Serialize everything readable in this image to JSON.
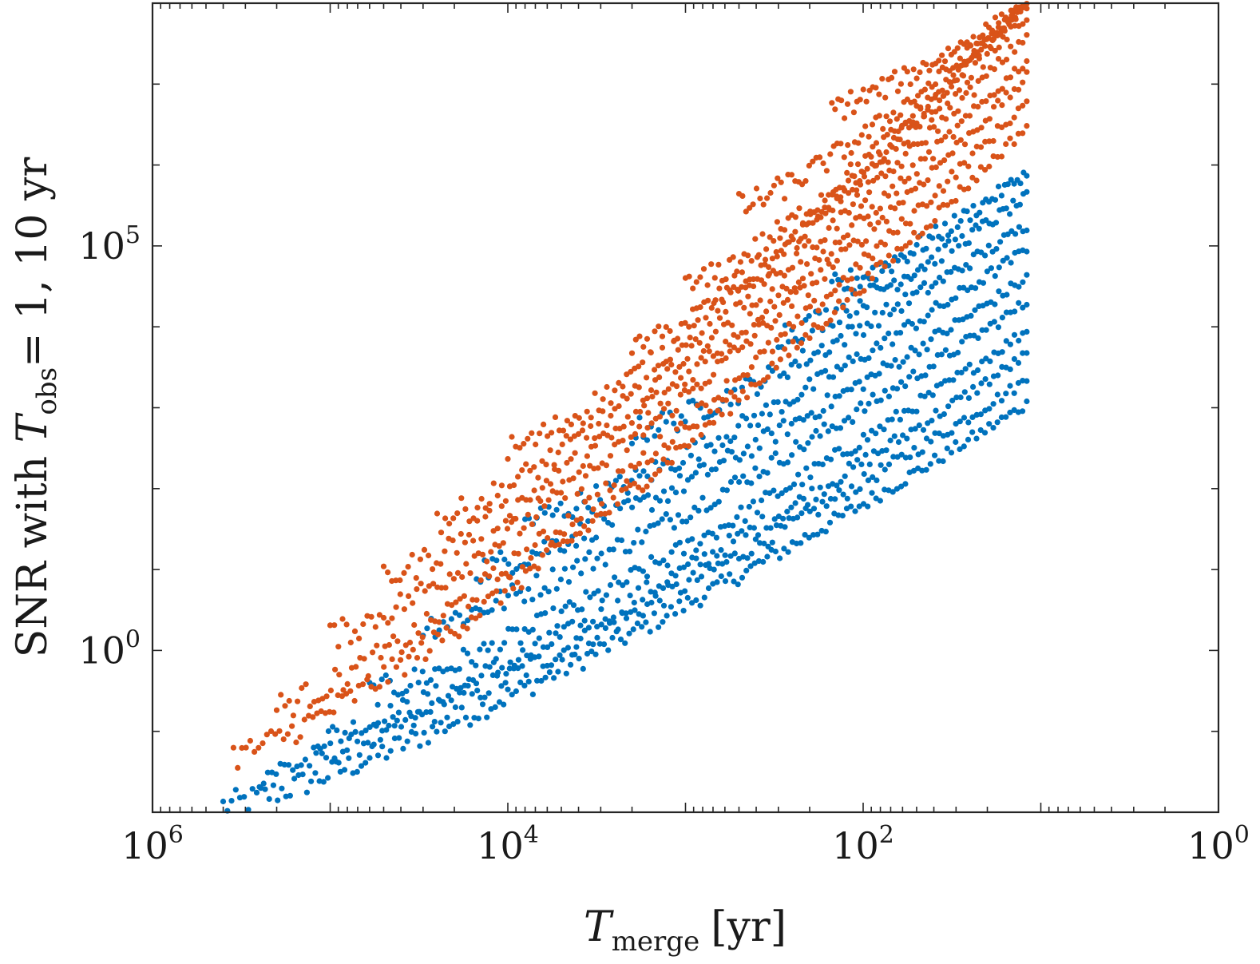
{
  "chart_data": {
    "type": "scatter",
    "x_axis": {
      "scale": "log",
      "reversed": true,
      "range": [
        1000000,
        1
      ],
      "tick_values": [
        1000000,
        10000,
        100,
        1
      ],
      "tick_bases": [
        "10",
        "10",
        "10",
        "10"
      ],
      "tick_exponents": [
        "6",
        "4",
        "2",
        "0"
      ],
      "label_main": "T",
      "label_sub": "merge",
      "label_unit": "[yr]"
    },
    "y_axis": {
      "scale": "log",
      "range": [
        0.01,
        100000000
      ],
      "tick_values": [
        1,
        100000
      ],
      "tick_bases": [
        "10",
        "10"
      ],
      "tick_exponents": [
        "0",
        "5"
      ],
      "label_prefix": "SNR with ",
      "label_main": "T",
      "label_sub": "obs",
      "label_suffix": "= 1, 10 yr"
    },
    "grid": false,
    "legend": "none",
    "colors": {
      "series_1": "#0072BD",
      "series_2": "#D95319"
    },
    "series": [
      {
        "color": "#0072BD",
        "tracks": [
          {
            "t_start": 400000,
            "t_end": 12,
            "snr_start": 0.012,
            "snr_end": 1100
          },
          {
            "t_start": 250000,
            "t_end": 12,
            "snr_start": 0.03,
            "snr_end": 2200
          },
          {
            "t_start": 120000,
            "t_end": 12,
            "snr_start": 0.08,
            "snr_end": 4500
          },
          {
            "t_start": 60000,
            "t_end": 12,
            "snr_start": 0.3,
            "snr_end": 9000
          },
          {
            "t_start": 30000,
            "t_end": 12,
            "snr_start": 2,
            "snr_end": 20000
          },
          {
            "t_start": 15000,
            "t_end": 12,
            "snr_start": 10,
            "snr_end": 40000
          },
          {
            "t_start": 8000,
            "t_end": 12,
            "snr_start": 40,
            "snr_end": 90000
          },
          {
            "t_start": 2000,
            "t_end": 12,
            "snr_start": 500,
            "snr_end": 180000
          },
          {
            "t_start": 300,
            "t_end": 12,
            "snr_start": 8000,
            "snr_end": 400000
          },
          {
            "t_start": 150,
            "t_end": 12,
            "snr_start": 30000,
            "snr_end": 800000
          }
        ]
      },
      {
        "color": "#D95319",
        "tracks": [
          {
            "t_start": 350000,
            "t_end": 12,
            "snr_start": 0.05,
            "snr_end": 3000000
          },
          {
            "t_start": 200000,
            "t_end": 12,
            "snr_start": 0.2,
            "snr_end": 6000000
          },
          {
            "t_start": 100000,
            "t_end": 12,
            "snr_start": 1.5,
            "snr_end": 12000000
          },
          {
            "t_start": 50000,
            "t_end": 12,
            "snr_start": 8,
            "snr_end": 20000000
          },
          {
            "t_start": 25000,
            "t_end": 12,
            "snr_start": 40,
            "snr_end": 40000000
          },
          {
            "t_start": 10000,
            "t_end": 12,
            "snr_start": 300,
            "snr_end": 70000000
          },
          {
            "t_start": 2000,
            "t_end": 12,
            "snr_start": 5000,
            "snr_end": 100000000
          },
          {
            "t_start": 1000,
            "t_end": 12,
            "snr_start": 30000,
            "snr_end": 100000000
          },
          {
            "t_start": 500,
            "t_end": 12,
            "snr_start": 300000,
            "snr_end": 100000000
          },
          {
            "t_start": 150,
            "t_end": 12,
            "snr_start": 5000000,
            "snr_end": 100000000
          }
        ]
      }
    ]
  }
}
